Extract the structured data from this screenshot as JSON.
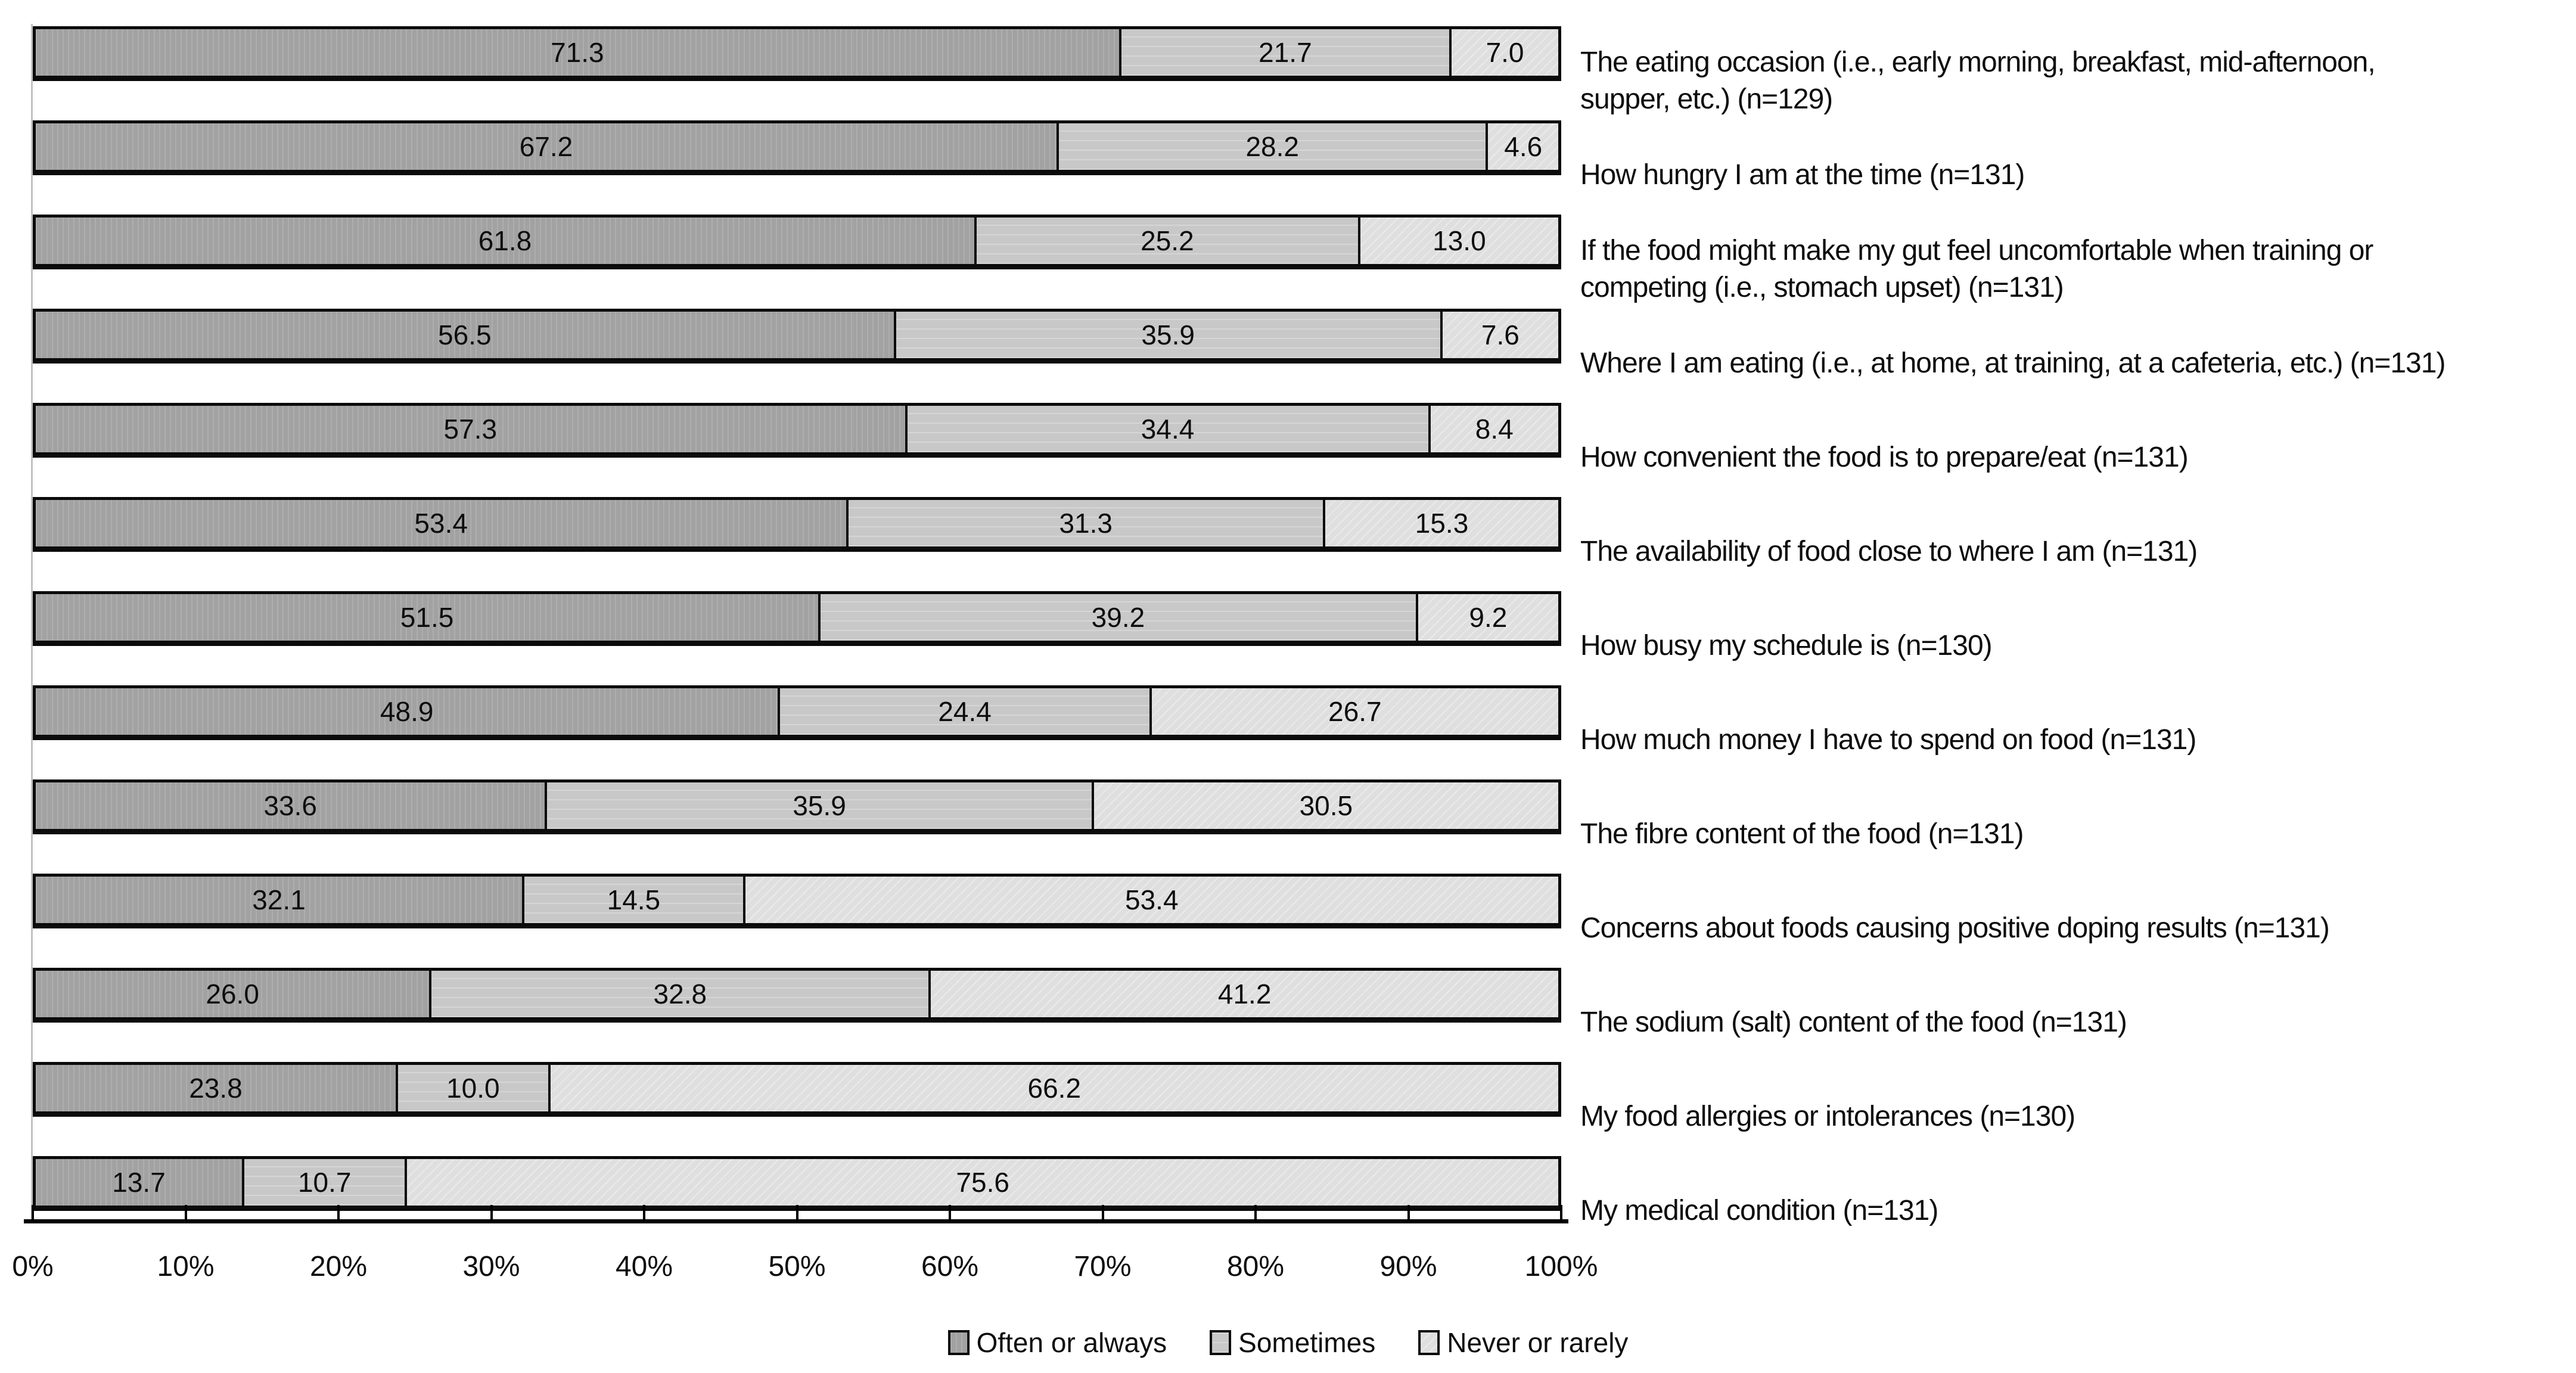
{
  "chart_data": {
    "type": "bar",
    "variant": "stacked-horizontal-100percent",
    "title": "",
    "xlabel": "",
    "ylabel": "",
    "xlim": [
      0,
      100
    ],
    "grid": false,
    "legend_position": "bottom-center",
    "x_axis": {
      "tick_labels": [
        "0%",
        "10%",
        "20%",
        "30%",
        "40%",
        "50%",
        "60%",
        "70%",
        "80%",
        "90%",
        "100%"
      ],
      "tick_values": [
        0,
        10,
        20,
        30,
        40,
        50,
        60,
        70,
        80,
        90,
        100
      ]
    },
    "series": [
      {
        "name": "Often or always",
        "color": "#a5a5a5",
        "values": [
          71.3,
          67.2,
          61.8,
          56.5,
          57.3,
          53.4,
          51.5,
          48.9,
          33.6,
          32.1,
          26.0,
          23.8,
          13.7
        ]
      },
      {
        "name": "Sometimes",
        "color": "#c8c8c8",
        "values": [
          21.7,
          28.2,
          25.2,
          35.9,
          34.4,
          31.3,
          39.2,
          24.4,
          35.9,
          14.5,
          32.8,
          10.0,
          10.7
        ]
      },
      {
        "name": "Never or rarely",
        "color": "#dfdfdf",
        "values": [
          7.0,
          4.6,
          13.0,
          7.6,
          8.4,
          15.3,
          9.2,
          26.7,
          30.5,
          53.4,
          41.2,
          66.2,
          75.6
        ]
      }
    ],
    "categories": [
      {
        "lines": [
          "The eating occasion (i.e., early morning, breakfast, mid-afternoon,",
          "supper, etc.) (n=129)"
        ]
      },
      {
        "lines": [
          "How hungry I am at the time (n=131)"
        ]
      },
      {
        "lines": [
          "If the food might make my gut feel uncomfortable when training or",
          "competing (i.e., stomach upset) (n=131)"
        ]
      },
      {
        "lines": [
          "Where I am eating (i.e., at home, at training, at a cafeteria, etc.) (n=131)"
        ]
      },
      {
        "lines": [
          "How convenient the food is to prepare/eat (n=131)"
        ]
      },
      {
        "lines": [
          "The availability of food close to where I am (n=131)"
        ]
      },
      {
        "lines": [
          "How busy my schedule is (n=130)"
        ]
      },
      {
        "lines": [
          "How much money I have to spend on food (n=131)"
        ]
      },
      {
        "lines": [
          "The fibre content of the food (n=131)"
        ]
      },
      {
        "lines": [
          "Concerns about foods causing positive doping results (n=131)"
        ]
      },
      {
        "lines": [
          "The sodium (salt) content of the food (n=131)"
        ]
      },
      {
        "lines": [
          "My food allergies or intolerances (n=130)"
        ]
      },
      {
        "lines": [
          "My medical condition (n=131)"
        ]
      }
    ],
    "legend": {
      "items": [
        "Often or always",
        "Sometimes",
        "Never or rarely"
      ]
    },
    "value_label_color": "#0d0d0d",
    "axis_line_color": "#000000",
    "segment_border_color": "#0b0b0b"
  }
}
